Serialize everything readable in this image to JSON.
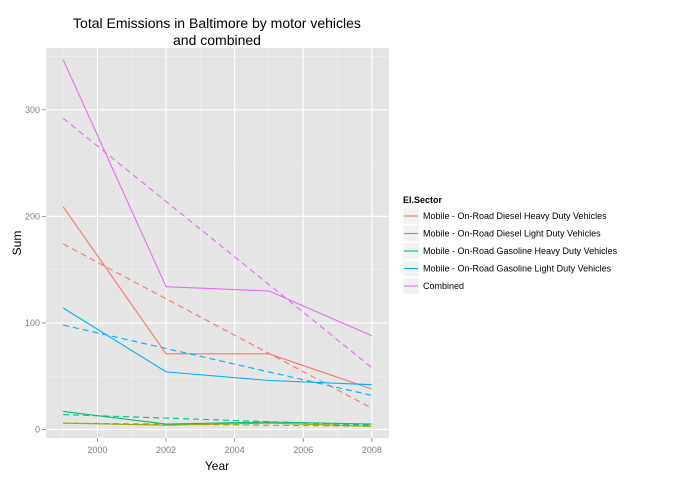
{
  "chart_data": {
    "type": "line",
    "title": [
      "Total Emissions in Baltimore by motor vehicles",
      "and combined"
    ],
    "xlabel": "Year",
    "ylabel": "Sum",
    "xlim": [
      1998.5,
      2008.5
    ],
    "ylim": [
      -8,
      358
    ],
    "x_ticks": [
      2000,
      2002,
      2004,
      2006,
      2008
    ],
    "y_ticks": [
      0,
      100,
      200,
      300
    ],
    "grid": true,
    "legend": {
      "title": "EI.Sector",
      "position": "right"
    },
    "x": [
      1999,
      2002,
      2005,
      2008
    ],
    "series": [
      {
        "name": "Mobile - On-Road Diesel Heavy Duty Vehicles",
        "color": "#F8766D",
        "values": [
          209,
          71,
          71,
          38
        ],
        "trend": [
          174,
          20
        ]
      },
      {
        "name": "Mobile - On-Road Diesel Light Duty Vehicles",
        "color": "#A3A500",
        "values": [
          6,
          4,
          6,
          3
        ],
        "trend": [
          6,
          3
        ]
      },
      {
        "name": "Mobile - On-Road Gasoline Heavy Duty Vehicles",
        "color": "#00BF7D",
        "values": [
          17,
          5,
          7,
          5
        ],
        "trend": [
          14,
          4
        ]
      },
      {
        "name": "Mobile - On-Road Gasoline Light Duty Vehicles",
        "color": "#00B0F6",
        "values": [
          114,
          54,
          46,
          42
        ],
        "trend": [
          98,
          32
        ]
      },
      {
        "name": "Combined",
        "color": "#E76BF3",
        "values": [
          347,
          134,
          130,
          88
        ],
        "trend": [
          292,
          58
        ]
      }
    ]
  }
}
